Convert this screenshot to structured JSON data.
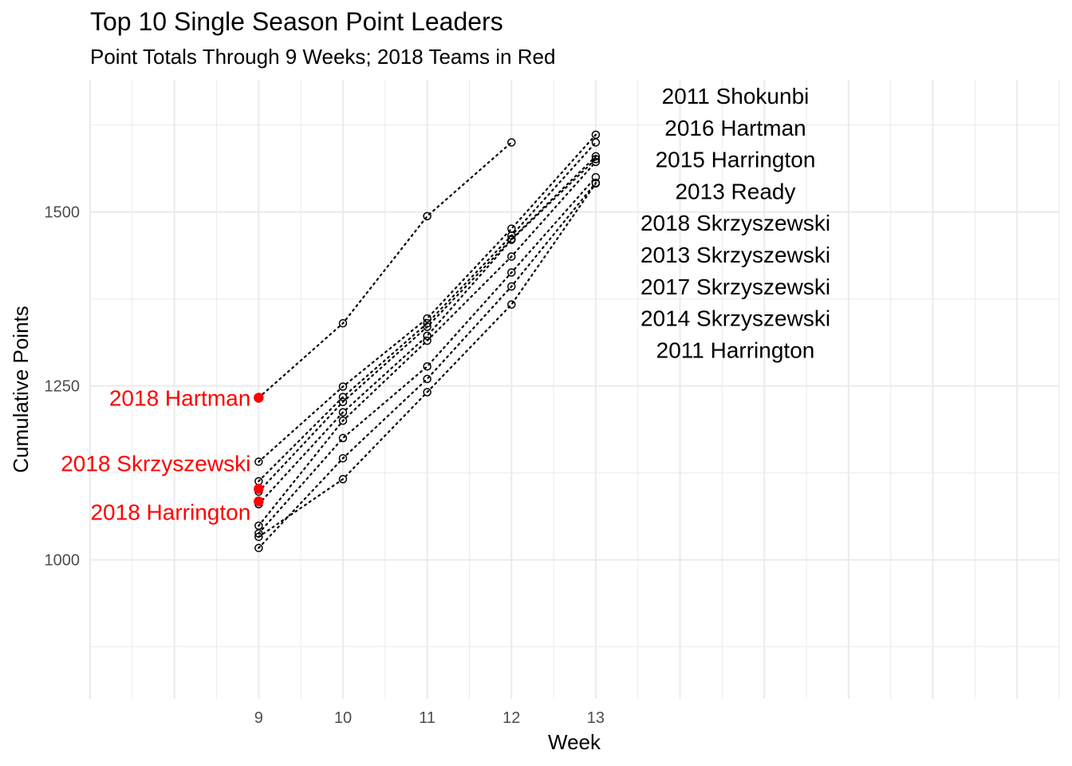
{
  "chart_data": {
    "type": "line",
    "title": "Top 10 Single Season Point Leaders",
    "subtitle": "Point Totals Through 9 Weeks; 2018 Teams in Red",
    "xlabel": "Week",
    "ylabel": "Cumulative Points",
    "xlim": [
      7.0,
      18.5
    ],
    "ylim": [
      800,
      1690
    ],
    "x_ticks": [
      9,
      10,
      11,
      12,
      13
    ],
    "y_ticks": [
      1000,
      1250,
      1500
    ],
    "grid": true,
    "highlight_color": "#ff0000",
    "line_style": "dotted",
    "series": [
      {
        "name": "2011 Shokunbi",
        "x": [
          9,
          10,
          11,
          12,
          13
        ],
        "values": [
          1141,
          1249,
          1347,
          1476,
          1611
        ],
        "highlight": false,
        "label_side": "right"
      },
      {
        "name": "2016 Hartman",
        "x": [
          9,
          10,
          11,
          12,
          13
        ],
        "values": [
          1113,
          1234,
          1340,
          1466,
          1600
        ],
        "highlight": false,
        "label_side": "right"
      },
      {
        "name": "2015 Harrington",
        "x": [
          9,
          10,
          11,
          12,
          13
        ],
        "values": [
          1098,
          1227,
          1335,
          1461,
          1580
        ],
        "highlight": false,
        "label_side": "right"
      },
      {
        "name": "2013 Ready",
        "x": [
          9,
          10,
          11,
          12,
          13
        ],
        "values": [
          1080,
          1212,
          1322,
          1460,
          1576
        ],
        "highlight": false,
        "label_side": "right"
      },
      {
        "name": "2018 Skrzyszewski",
        "x": [
          9
        ],
        "values": [
          1102
        ],
        "highlight": true,
        "label_side": "left"
      },
      {
        "name": "2013 Skrzyszewski",
        "x": [
          9,
          10,
          11,
          12,
          13
        ],
        "values": [
          1049,
          1200,
          1315,
          1436,
          1572
        ],
        "highlight": false,
        "label_side": "right"
      },
      {
        "name": "2017 Skrzyszewski",
        "x": [
          9,
          10,
          11,
          12,
          13
        ],
        "values": [
          1038,
          1175,
          1278,
          1413,
          1550
        ],
        "highlight": false,
        "label_side": "right"
      },
      {
        "name": "2014 Skrzyszewski",
        "x": [
          9,
          10,
          11,
          12,
          13
        ],
        "values": [
          1017,
          1146,
          1260,
          1393,
          1542
        ],
        "highlight": false,
        "label_side": "right"
      },
      {
        "name": "2011 Harrington",
        "x": [
          9,
          10,
          11,
          12,
          13
        ],
        "values": [
          1033,
          1116,
          1241,
          1367,
          1541
        ],
        "highlight": false,
        "label_side": "right"
      },
      {
        "name": "2018 Hartman",
        "x": [
          9,
          10,
          11,
          12
        ],
        "values": [
          1233,
          1340,
          1494,
          1600
        ],
        "highlight": true,
        "label_side": "left"
      },
      {
        "name": "2018 Harrington",
        "x": [
          9
        ],
        "values": [
          1084
        ],
        "highlight": true,
        "label_side": "left"
      }
    ],
    "right_labels": [
      "2011 Shokunbi",
      "2016 Hartman",
      "2015 Harrington",
      "2013 Ready",
      "2018 Skrzyszewski",
      "2013 Skrzyszewski",
      "2017 Skrzyszewski",
      "2014 Skrzyszewski",
      "2011 Harrington"
    ],
    "left_labels": [
      {
        "name": "2018 Hartman",
        "value": 1233
      },
      {
        "name": "2018 Skrzyszewski",
        "value": 1102
      },
      {
        "name": "2018 Harrington",
        "value": 1084
      }
    ]
  }
}
